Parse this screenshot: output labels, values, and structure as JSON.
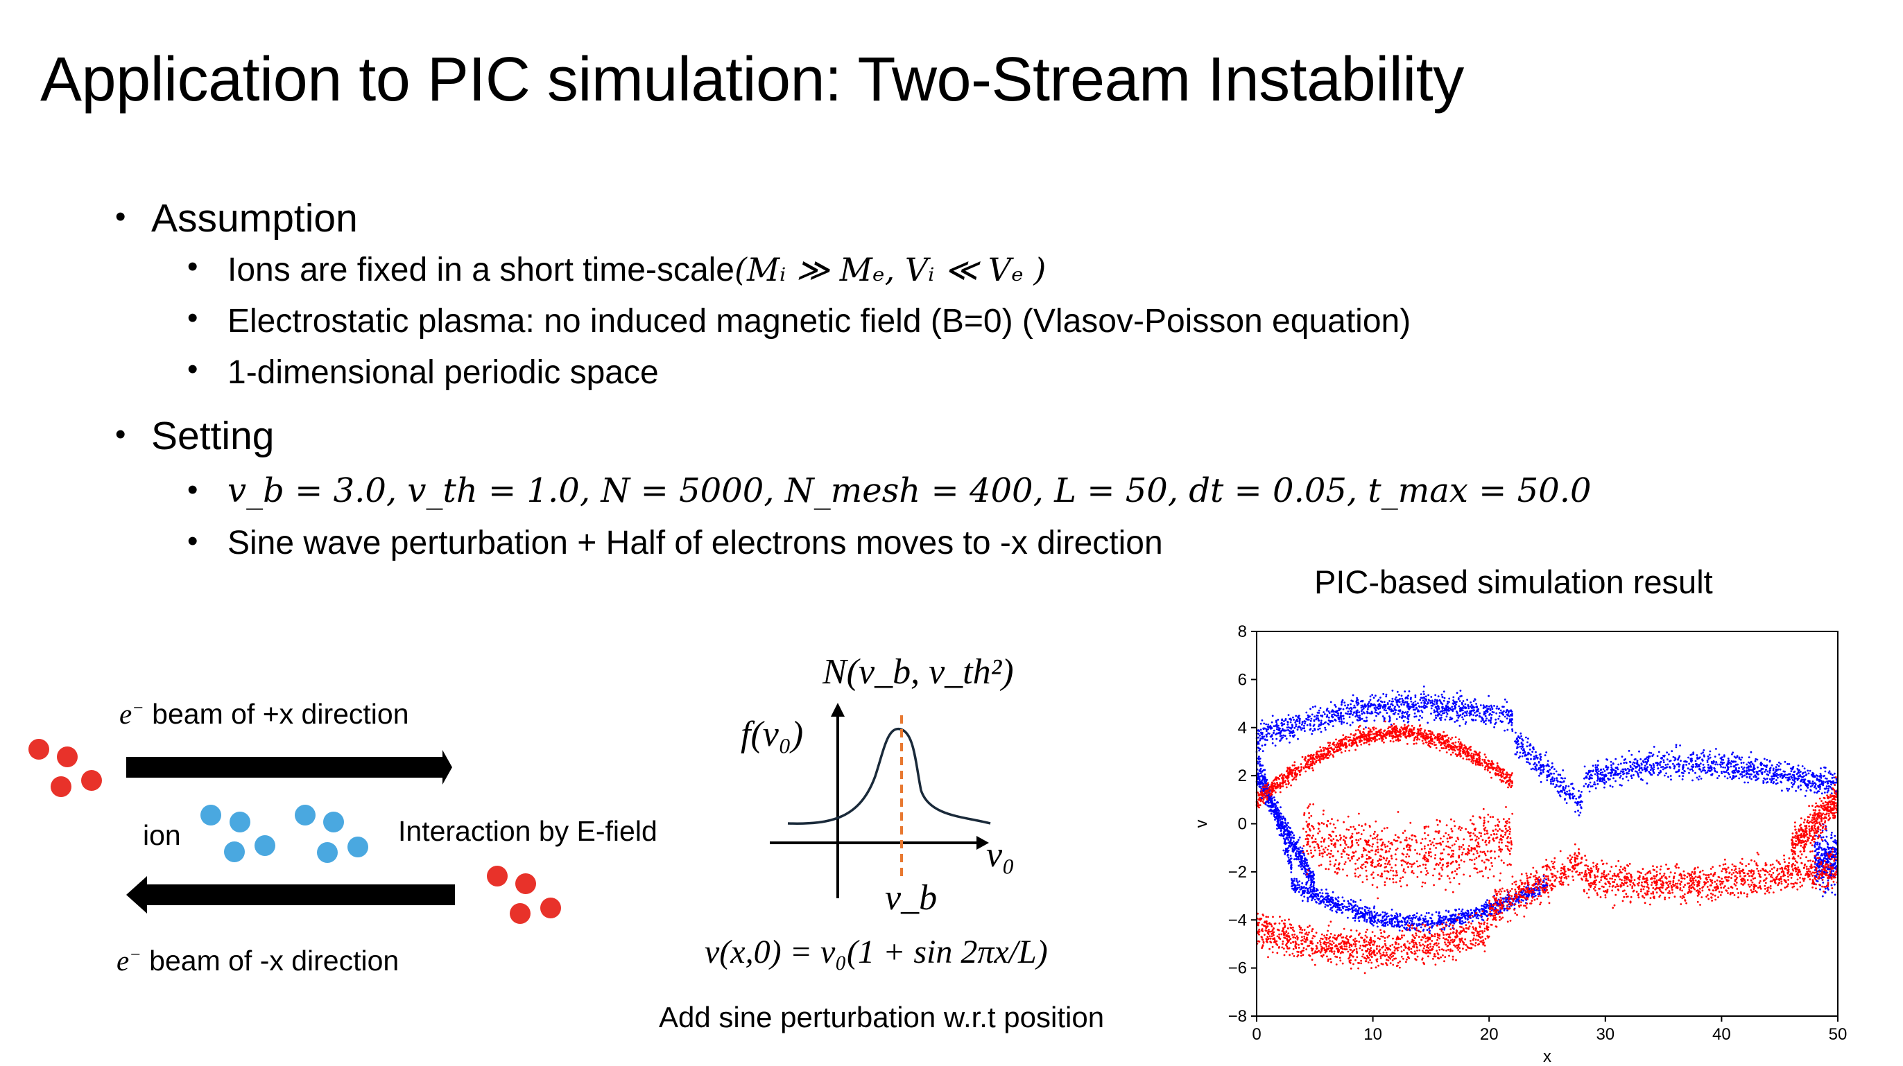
{
  "title": "Application to PIC simulation: Two-Stream Instability",
  "bullets": {
    "assumption": {
      "heading": "Assumption",
      "items": [
        {
          "text": "Ions are fixed in a short time-scale",
          "math": "(Mᵢ ≫ Mₑ, Vᵢ ≪ Vₑ )"
        },
        {
          "text": "Electrostatic plasma: no induced magnetic field (B=0) (Vlasov-Poisson equation)"
        },
        {
          "text": "1-dimensional periodic space"
        }
      ]
    },
    "setting": {
      "heading": "Setting",
      "items": [
        {
          "math": "v_b = 3.0, v_th = 1.0, N = 5000, N_mesh = 400, L = 50, dt = 0.05, t_max = 50.0"
        },
        {
          "text": "Sine wave perturbation + Half of electrons moves to -x direction"
        }
      ]
    }
  },
  "diagram": {
    "beam_plus": "beam of +x direction",
    "beam_minus": "beam of -x direction",
    "electron_symbol": "e",
    "electron_sup": "−",
    "ion_label": "ion",
    "interaction_label": "Interaction by E-field",
    "colors": {
      "electron": "#e8322a",
      "ion": "#4aa8e0",
      "arrow": "#000000"
    }
  },
  "distribution": {
    "normal_label": "N(v_b, v_th²)",
    "f_label": "f(v₀)",
    "x_axis_label": "v₀",
    "peak_label": "v_b",
    "equation": "v(x,0) = v₀(1 + sin 2πx/L)",
    "caption": "Add sine perturbation w.r.t position",
    "colors": {
      "curve": "#1a2a3a",
      "dashed": "#e87830"
    }
  },
  "chart_data": {
    "type": "scatter",
    "title": "PIC-based simulation result",
    "xlabel": "x",
    "ylabel": "v",
    "xlim": [
      0,
      50
    ],
    "ylim": [
      -8,
      8
    ],
    "xticks": [
      "0",
      "10",
      "20",
      "30",
      "40",
      "50"
    ],
    "yticks": [
      "8",
      "6",
      "4",
      "2",
      "0",
      "−2",
      "−4",
      "−6",
      "−8"
    ],
    "grid": false,
    "series": [
      {
        "color": "#0000ff",
        "description_points": [
          {
            "x": 0,
            "y": 3.5
          },
          {
            "x": 5,
            "y": 4.6
          },
          {
            "x": 10,
            "y": 5.0
          },
          {
            "x": 14,
            "y": 4.8
          },
          {
            "x": 20,
            "y": 3.5
          },
          {
            "x": 25,
            "y": 0.8
          },
          {
            "x": 30,
            "y": 2.0
          },
          {
            "x": 35,
            "y": 2.6
          },
          {
            "x": 40,
            "y": 2.4
          },
          {
            "x": 45,
            "y": 2.5
          },
          {
            "x": 50,
            "y": 2.8
          },
          {
            "x": 2,
            "y": 0.0
          },
          {
            "x": 4,
            "y": -2.5
          },
          {
            "x": 8,
            "y": -3.8
          },
          {
            "x": 12,
            "y": -4.0
          },
          {
            "x": 18,
            "y": -2.0
          },
          {
            "x": 22,
            "y": 0.0
          }
        ]
      },
      {
        "color": "#ff0000",
        "description_points": [
          {
            "x": 0,
            "y": 0.8
          },
          {
            "x": 3,
            "y": 2.6
          },
          {
            "x": 8,
            "y": 3.6
          },
          {
            "x": 13,
            "y": 3.8
          },
          {
            "x": 18,
            "y": 3.0
          },
          {
            "x": 22,
            "y": 0.5
          },
          {
            "x": 26,
            "y": -1.0
          },
          {
            "x": 30,
            "y": -1.2
          },
          {
            "x": 35,
            "y": -1.5
          },
          {
            "x": 40,
            "y": -1.6
          },
          {
            "x": 45,
            "y": -1.8
          },
          {
            "x": 50,
            "y": 0.5
          },
          {
            "x": 2,
            "y": -4.0
          },
          {
            "x": 6,
            "y": -5.0
          },
          {
            "x": 10,
            "y": -5.2
          },
          {
            "x": 14,
            "y": -5.0
          },
          {
            "x": 20,
            "y": -3.6
          },
          {
            "x": 25,
            "y": -3.0
          },
          {
            "x": 30,
            "y": -3.2
          },
          {
            "x": 40,
            "y": -3.4
          },
          {
            "x": 48,
            "y": -3.0
          }
        ]
      }
    ]
  }
}
